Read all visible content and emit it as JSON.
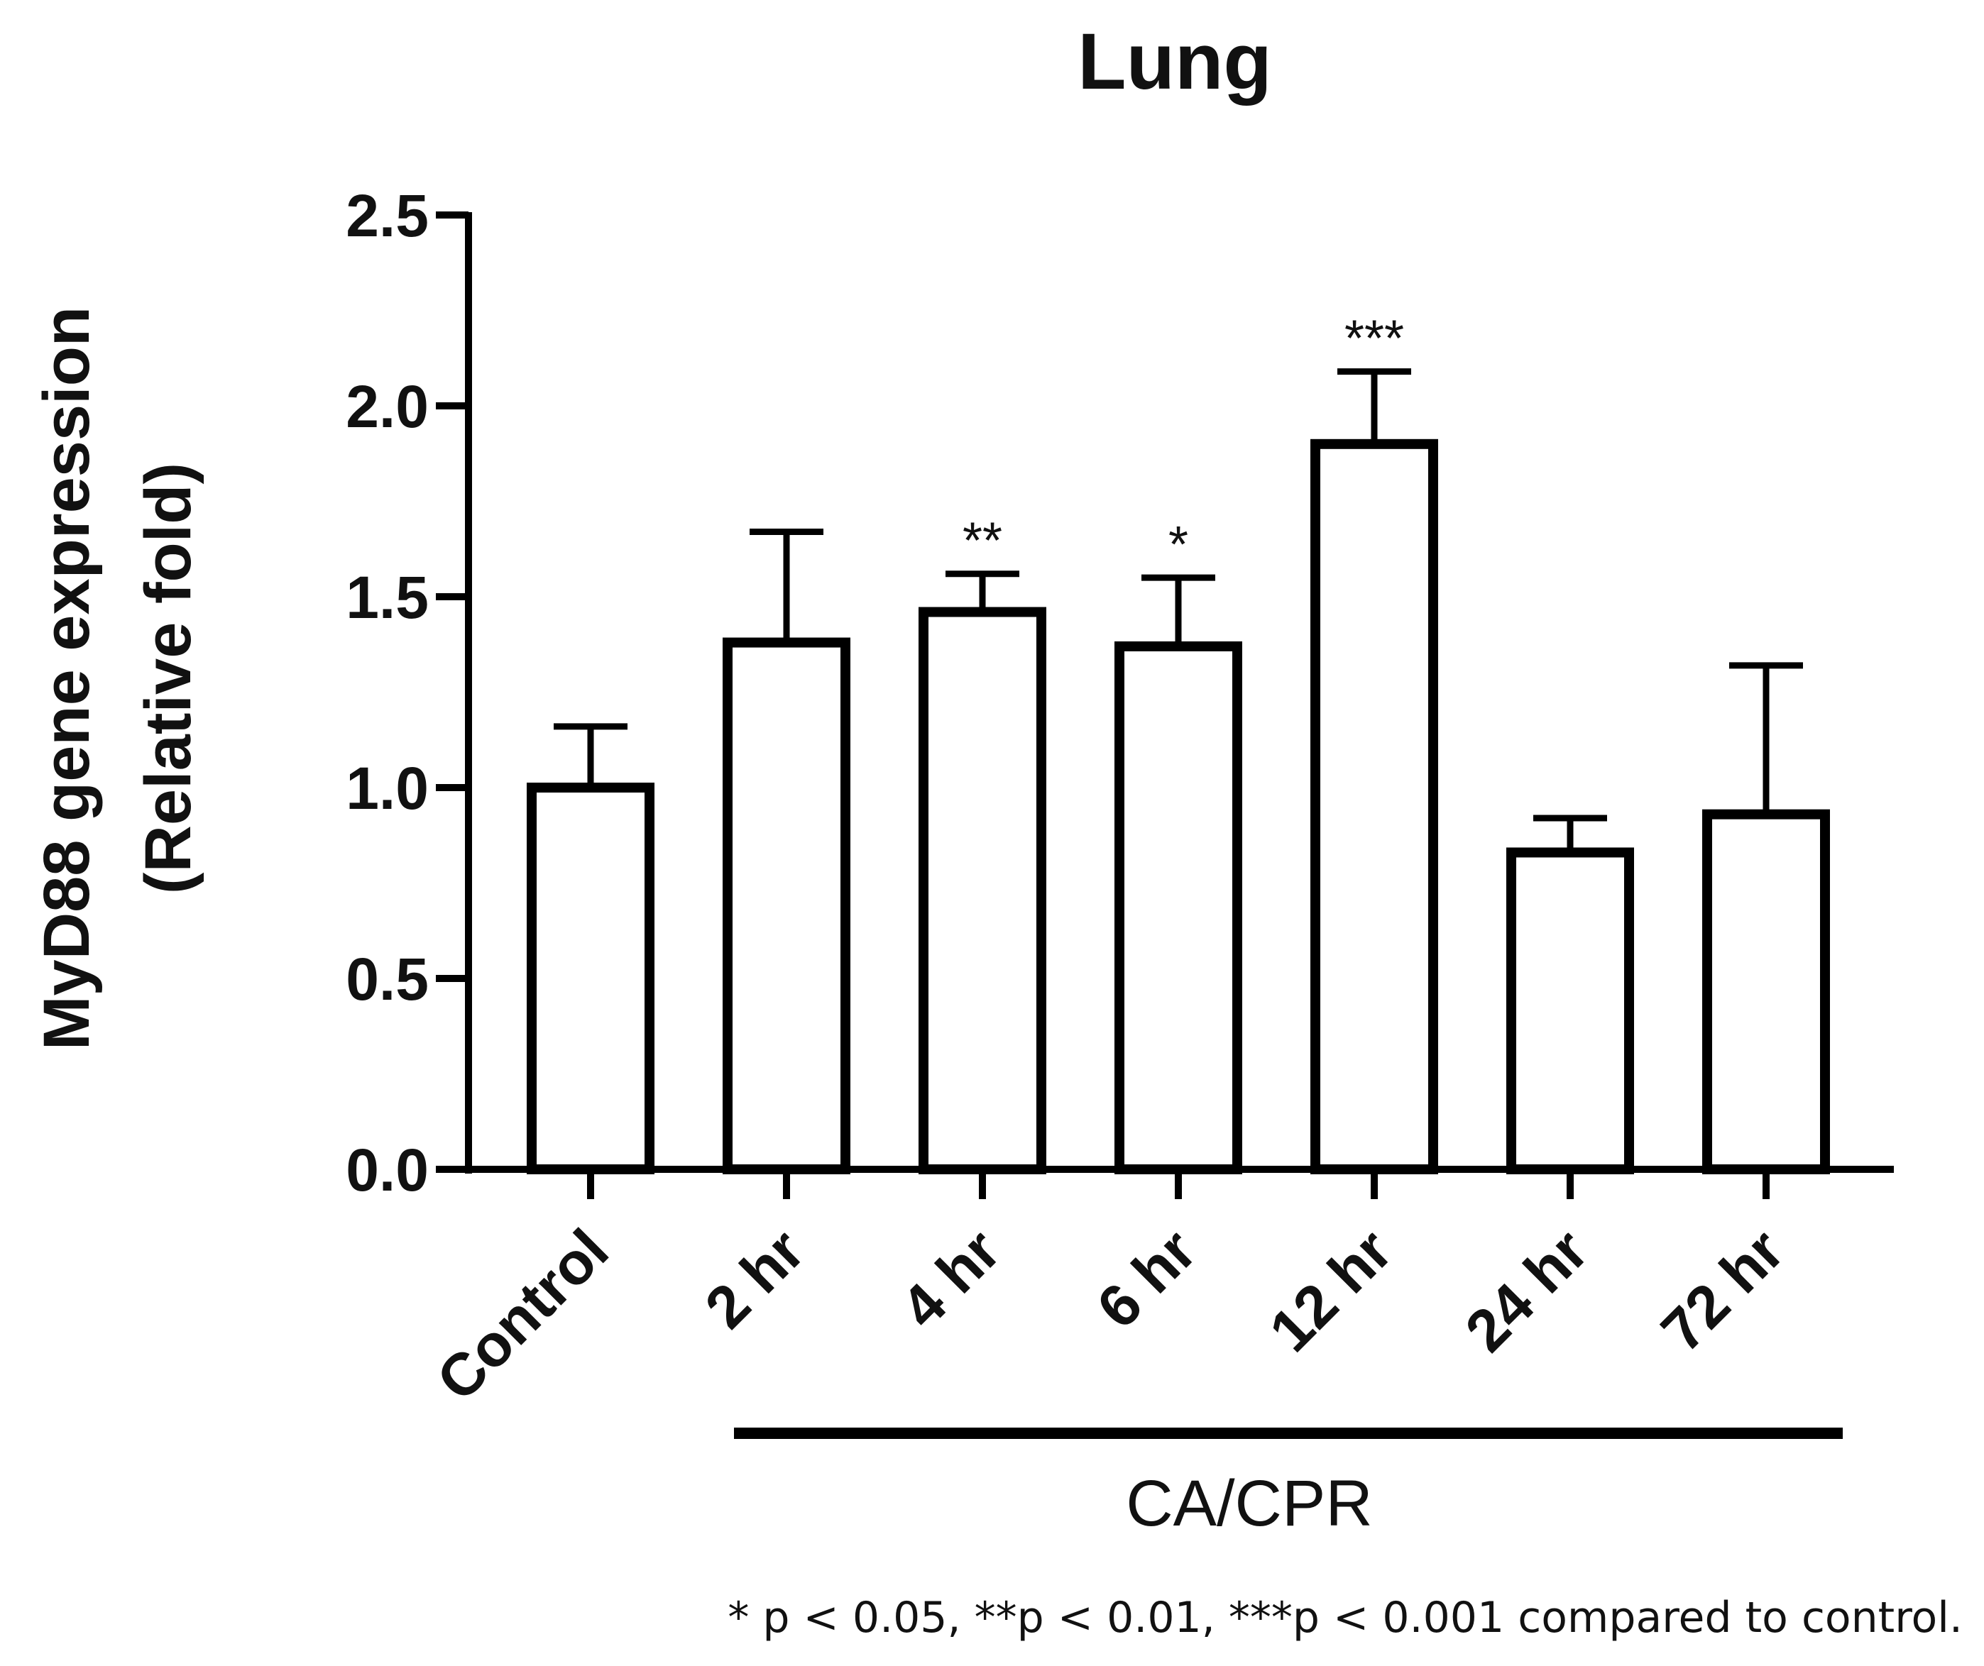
{
  "chart_data": {
    "type": "bar",
    "title": "Lung",
    "ylabel_line1": "MyD88 gene expression",
    "ylabel_line2": "(Relative fold)",
    "ylim": [
      0,
      2.5
    ],
    "yticks": [
      "0.0",
      "0.5",
      "1.0",
      "1.5",
      "2.0",
      "2.5"
    ],
    "categories": [
      "Control",
      "2 hr",
      "4 hr",
      "6 hr",
      "12 hr",
      "24 hr",
      "72 hr"
    ],
    "values": [
      1.0,
      1.38,
      1.46,
      1.37,
      1.9,
      0.83,
      0.93
    ],
    "errors": [
      0.16,
      0.29,
      0.1,
      0.18,
      0.19,
      0.09,
      0.39
    ],
    "significance": [
      "",
      "",
      "**",
      "*",
      "***",
      "",
      ""
    ],
    "group_label": "CA/CPR",
    "footnote": "* p < 0.05, **p < 0.01, ***p < 0.001 compared to control."
  }
}
